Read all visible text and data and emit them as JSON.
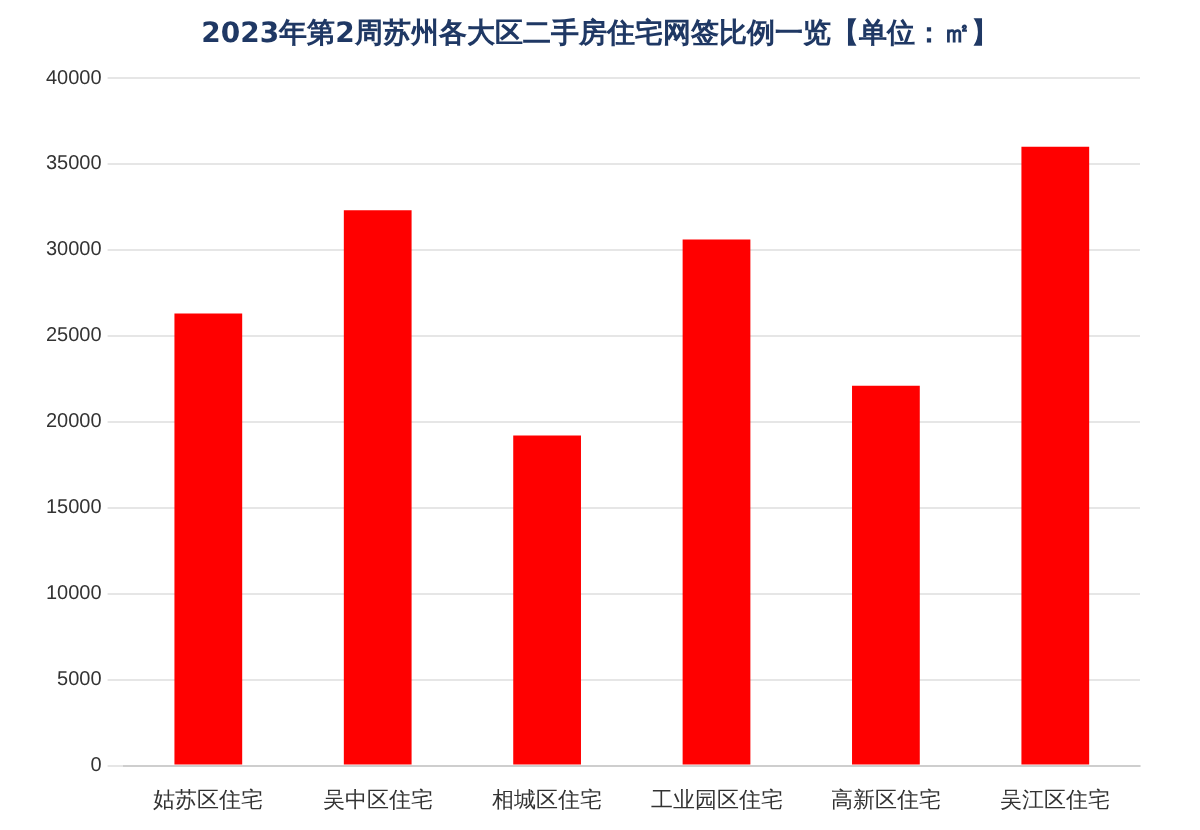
{
  "chart_data": {
    "type": "bar",
    "title": "2023年第2周苏州各大区二手房住宅网签比例一览【单位：㎡】",
    "categories": [
      "姑苏区住宅",
      "吴中区住宅",
      "相城区住宅",
      "工业园区住宅",
      "高新区住宅",
      "吴江区住宅"
    ],
    "values": [
      26300,
      32300,
      19200,
      30600,
      22100,
      36000
    ],
    "color": "#ff0000",
    "ylim": [
      0,
      40000
    ],
    "yticks": [
      0,
      5000,
      10000,
      15000,
      20000,
      25000,
      30000,
      35000,
      40000
    ],
    "grid": "y"
  }
}
